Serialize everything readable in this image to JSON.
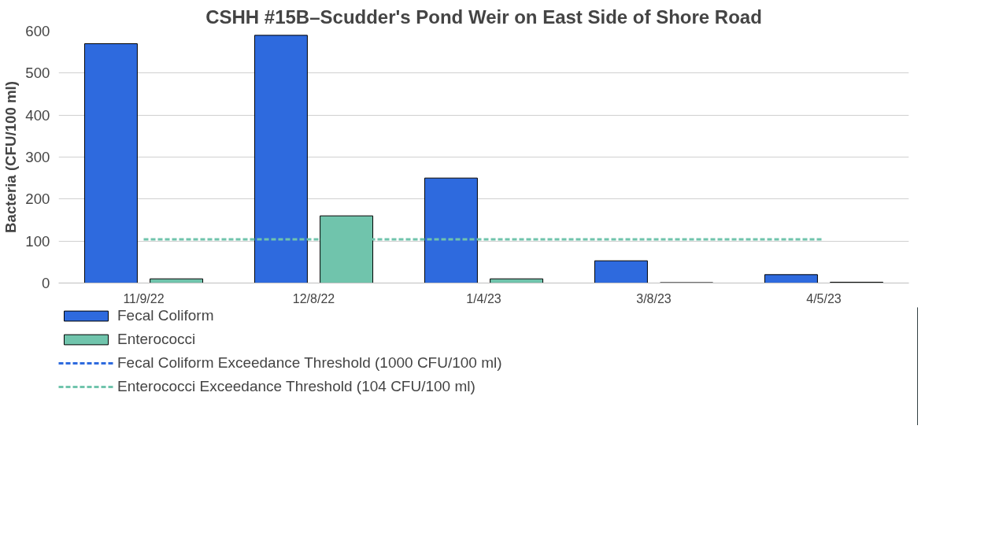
{
  "chart_data": {
    "type": "bar",
    "title": "CSHH #15B–Scudder's Pond Weir on East Side of Shore Road",
    "ylabel": "Bacteria (CFU/100 ml)",
    "categories": [
      "11/9/22",
      "12/8/22",
      "1/4/23",
      "3/8/23",
      "4/5/23"
    ],
    "series": [
      {
        "name": "Fecal Coliform",
        "color": "#2e6ade",
        "values": [
          570,
          590,
          250,
          53,
          20
        ]
      },
      {
        "name": "Enterococci",
        "color": "#70c4ac",
        "values": [
          10,
          160,
          10,
          1,
          2
        ]
      },
      {
        "name": "Fecal Coliform Exceedance Threshold (1000 CFU/100 ml)",
        "type": "line",
        "line_style": "dashed",
        "color": "#2e6ade",
        "values": [
          null,
          null,
          null,
          null,
          null
        ]
      },
      {
        "name": "Enterococci Exceedance Threshold (104 CFU/100 ml)",
        "type": "line",
        "line_style": "dashed",
        "color": "#70c4ac",
        "values": [
          104,
          104,
          104,
          104,
          104
        ]
      }
    ],
    "ylim": [
      0,
      600
    ],
    "yticks": [
      0,
      100,
      200,
      300,
      400,
      500,
      600
    ],
    "grid": "y",
    "legend": "bottom"
  }
}
